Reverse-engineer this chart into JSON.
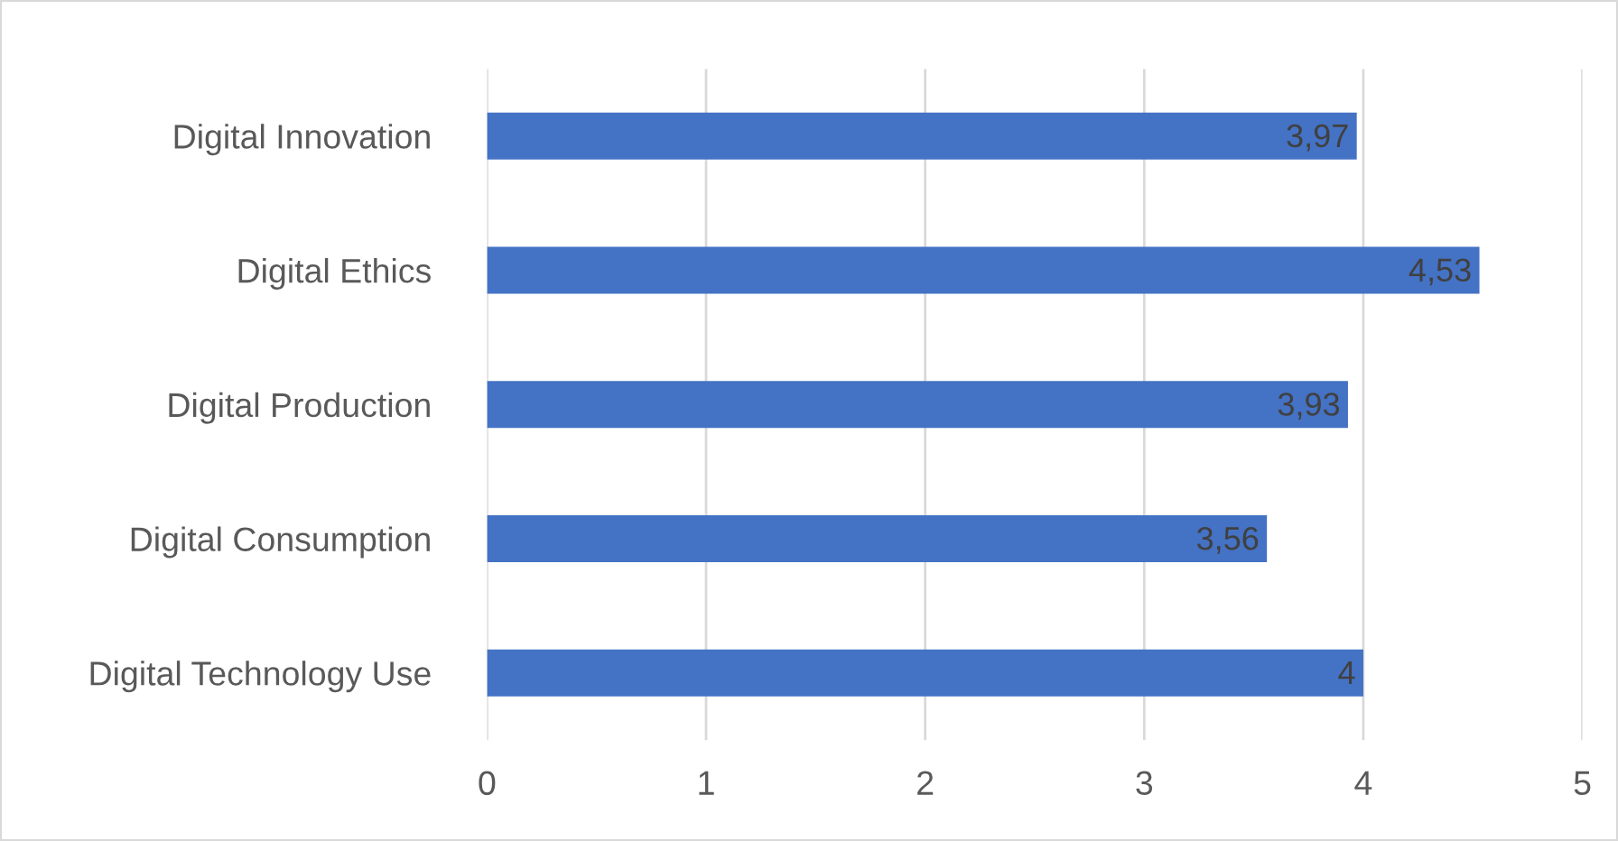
{
  "chart_data": {
    "type": "bar",
    "orientation": "horizontal",
    "categories": [
      "Digital Innovation",
      "Digital Ethics",
      "Digital Production",
      "Digital Consumption",
      "Digital Technology Use"
    ],
    "values": [
      3.97,
      4.53,
      3.93,
      3.56,
      4
    ],
    "value_labels": [
      "3,97",
      "4,53",
      "3,93",
      "3,56",
      "4"
    ],
    "color": "#4472c4",
    "xlim": [
      0,
      5
    ],
    "xticks": [
      0,
      1,
      2,
      3,
      4,
      5
    ],
    "grid": "x"
  }
}
